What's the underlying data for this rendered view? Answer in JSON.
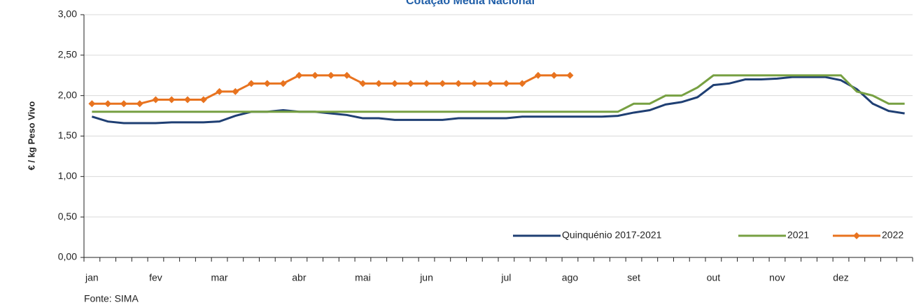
{
  "chart_data": {
    "type": "line",
    "title": "Cotação Média Nacional",
    "y_label": "€ / kg Peso Vivo",
    "source": "Fonte: SIMA",
    "categories": [
      "jan",
      null,
      null,
      null,
      "fev",
      null,
      null,
      null,
      "mar",
      null,
      null,
      null,
      null,
      "abr",
      null,
      null,
      null,
      "mai",
      null,
      null,
      null,
      "jun",
      null,
      null,
      null,
      null,
      "jul",
      null,
      null,
      null,
      "ago",
      null,
      null,
      null,
      "set",
      null,
      null,
      null,
      null,
      "out",
      null,
      null,
      null,
      "nov",
      null,
      null,
      null,
      "dez",
      null,
      null,
      null,
      null
    ],
    "ylim": [
      0,
      3
    ],
    "yticks": [
      {
        "value": 0,
        "label": "0,00"
      },
      {
        "value": 0.5,
        "label": "0,50"
      },
      {
        "value": 1,
        "label": "1,00"
      },
      {
        "value": 1.5,
        "label": "1,50"
      },
      {
        "value": 2,
        "label": "2,00"
      },
      {
        "value": 2.5,
        "label": "2,50"
      },
      {
        "value": 3,
        "label": "3,00"
      }
    ],
    "grid": true,
    "legend": "bottom-right",
    "series": [
      {
        "name": "Quinquénio 2017-2021",
        "color": "#1f3f73",
        "marker": false,
        "values": [
          1.74,
          1.68,
          1.66,
          1.66,
          1.66,
          1.67,
          1.67,
          1.67,
          1.68,
          1.75,
          1.8,
          1.8,
          1.82,
          1.8,
          1.8,
          1.78,
          1.76,
          1.72,
          1.72,
          1.7,
          1.7,
          1.7,
          1.7,
          1.72,
          1.72,
          1.72,
          1.72,
          1.74,
          1.74,
          1.74,
          1.74,
          1.74,
          1.74,
          1.75,
          1.79,
          1.82,
          1.89,
          1.92,
          1.98,
          2.13,
          2.15,
          2.2,
          2.2,
          2.21,
          2.23,
          2.23,
          2.23,
          2.19,
          2.08,
          1.9,
          1.81,
          1.78
        ]
      },
      {
        "name": "2021",
        "color": "#77a042",
        "marker": false,
        "values": [
          1.8,
          1.8,
          1.8,
          1.8,
          1.8,
          1.8,
          1.8,
          1.8,
          1.8,
          1.8,
          1.8,
          1.8,
          1.8,
          1.8,
          1.8,
          1.8,
          1.8,
          1.8,
          1.8,
          1.8,
          1.8,
          1.8,
          1.8,
          1.8,
          1.8,
          1.8,
          1.8,
          1.8,
          1.8,
          1.8,
          1.8,
          1.8,
          1.8,
          1.8,
          1.9,
          1.9,
          2.0,
          2.0,
          2.1,
          2.25,
          2.25,
          2.25,
          2.25,
          2.25,
          2.25,
          2.25,
          2.25,
          2.25,
          2.05,
          2.0,
          1.9,
          1.9
        ]
      },
      {
        "name": "2022",
        "color": "#e8731f",
        "marker": true,
        "values": [
          1.9,
          1.9,
          1.9,
          1.9,
          1.95,
          1.95,
          1.95,
          1.95,
          2.05,
          2.05,
          2.15,
          2.15,
          2.15,
          2.25,
          2.25,
          2.25,
          2.25,
          2.15,
          2.15,
          2.15,
          2.15,
          2.15,
          2.15,
          2.15,
          2.15,
          2.15,
          2.15,
          2.15,
          2.25,
          2.25,
          2.25,
          null,
          null,
          null,
          null,
          null,
          null,
          null,
          null,
          null,
          null,
          null,
          null,
          null,
          null,
          null,
          null,
          null,
          null,
          null,
          null,
          null
        ]
      }
    ]
  }
}
